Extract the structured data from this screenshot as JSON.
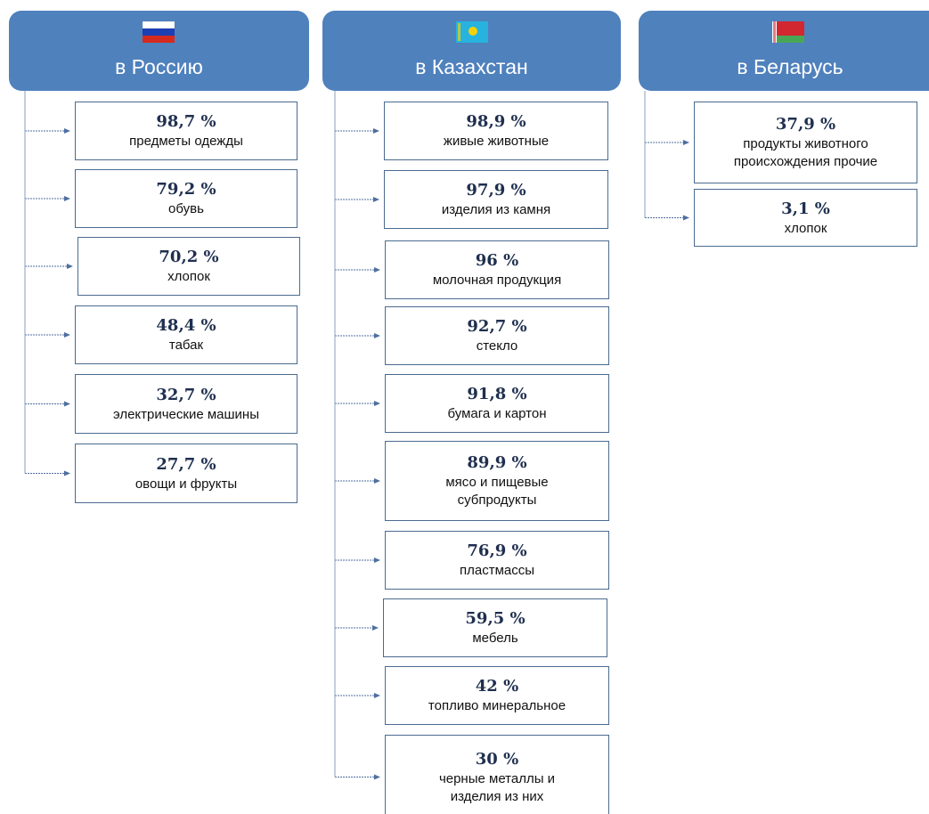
{
  "columns": [
    {
      "title": "в Россию",
      "items": [
        {
          "value": "98,7 %",
          "label": [
            "предметы одежды"
          ]
        },
        {
          "value": "79,2 %",
          "label": [
            "обувь"
          ]
        },
        {
          "value": "70,2 %",
          "label": [
            "хлопок"
          ]
        },
        {
          "value": "48,4 %",
          "label": [
            "табак"
          ]
        },
        {
          "value": "32,7 %",
          "label": [
            "электрические машины"
          ]
        },
        {
          "value": "27,7 %",
          "label": [
            "овощи и фрукты"
          ]
        }
      ]
    },
    {
      "title": "в Казахстан",
      "items": [
        {
          "value": "98,9 %",
          "label": [
            "живые животные"
          ]
        },
        {
          "value": "97,9 %",
          "label": [
            "изделия из камня"
          ]
        },
        {
          "value": "96 %",
          "label": [
            "молочная продукция"
          ]
        },
        {
          "value": "92,7 %",
          "label": [
            "стекло"
          ]
        },
        {
          "value": "91,8 %",
          "label": [
            "бумага и картон"
          ]
        },
        {
          "value": "89,9 %",
          "label": [
            "мясо и пищевые",
            "субпродукты"
          ]
        },
        {
          "value": "76,9 %",
          "label": [
            "пластмассы"
          ]
        },
        {
          "value": "59,5 %",
          "label": [
            "мебель"
          ]
        },
        {
          "value": "42 %",
          "label": [
            "топливо минеральное"
          ]
        },
        {
          "value": "30 %",
          "label": [
            "черные металлы и",
            "изделия из них"
          ]
        }
      ]
    },
    {
      "title": "в Беларусь",
      "items": [
        {
          "value": "37,9 %",
          "label": [
            "продукты животного",
            "происхождения прочие"
          ]
        },
        {
          "value": "3,1 %",
          "label": [
            "хлопок"
          ]
        }
      ]
    }
  ]
}
